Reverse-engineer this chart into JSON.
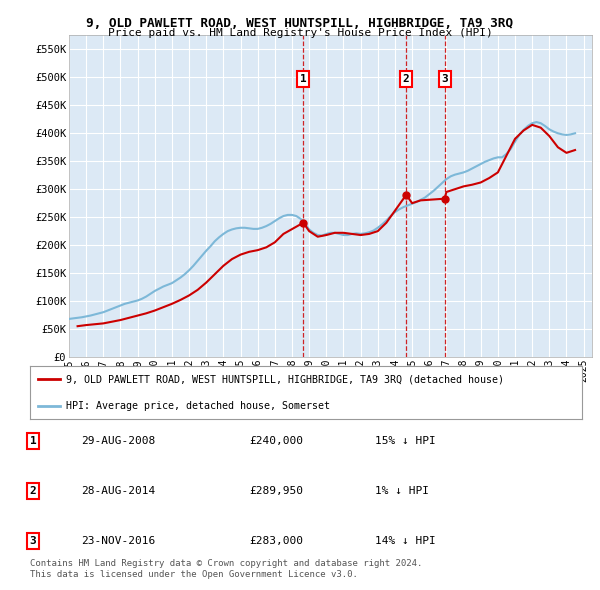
{
  "title": "9, OLD PAWLETT ROAD, WEST HUNTSPILL, HIGHBRIDGE, TA9 3RQ",
  "subtitle": "Price paid vs. HM Land Registry's House Price Index (HPI)",
  "ylabel_ticks": [
    "£0",
    "£50K",
    "£100K",
    "£150K",
    "£200K",
    "£250K",
    "£300K",
    "£350K",
    "£400K",
    "£450K",
    "£500K",
    "£550K"
  ],
  "ytick_values": [
    0,
    50000,
    100000,
    150000,
    200000,
    250000,
    300000,
    350000,
    400000,
    450000,
    500000,
    550000
  ],
  "xlim_start": 1995.0,
  "xlim_end": 2025.5,
  "ylim_min": 0,
  "ylim_max": 575000,
  "plot_bg_color": "#dce9f5",
  "grid_color": "#ffffff",
  "transactions": [
    {
      "num": 1,
      "date": "29-AUG-2008",
      "price": 240000,
      "hpi_diff": "15% ↓ HPI",
      "x": 2008.66
    },
    {
      "num": 2,
      "date": "28-AUG-2014",
      "price": 289950,
      "hpi_diff": "1% ↓ HPI",
      "x": 2014.66
    },
    {
      "num": 3,
      "date": "23-NOV-2016",
      "price": 283000,
      "hpi_diff": "14% ↓ HPI",
      "x": 2016.9
    }
  ],
  "hpi_line_color": "#7db8d8",
  "price_line_color": "#cc0000",
  "legend_label_price": "9, OLD PAWLETT ROAD, WEST HUNTSPILL, HIGHBRIDGE, TA9 3RQ (detached house)",
  "legend_label_hpi": "HPI: Average price, detached house, Somerset",
  "footer_line1": "Contains HM Land Registry data © Crown copyright and database right 2024.",
  "footer_line2": "This data is licensed under the Open Government Licence v3.0.",
  "hpi_data_x": [
    1995,
    1995.25,
    1995.5,
    1995.75,
    1996,
    1996.25,
    1996.5,
    1996.75,
    1997,
    1997.25,
    1997.5,
    1997.75,
    1998,
    1998.25,
    1998.5,
    1998.75,
    1999,
    1999.25,
    1999.5,
    1999.75,
    2000,
    2000.25,
    2000.5,
    2000.75,
    2001,
    2001.25,
    2001.5,
    2001.75,
    2002,
    2002.25,
    2002.5,
    2002.75,
    2003,
    2003.25,
    2003.5,
    2003.75,
    2004,
    2004.25,
    2004.5,
    2004.75,
    2005,
    2005.25,
    2005.5,
    2005.75,
    2006,
    2006.25,
    2006.5,
    2006.75,
    2007,
    2007.25,
    2007.5,
    2007.75,
    2008,
    2008.25,
    2008.5,
    2008.75,
    2009,
    2009.25,
    2009.5,
    2009.75,
    2010,
    2010.25,
    2010.5,
    2010.75,
    2011,
    2011.25,
    2011.5,
    2011.75,
    2012,
    2012.25,
    2012.5,
    2012.75,
    2013,
    2013.25,
    2013.5,
    2013.75,
    2014,
    2014.25,
    2014.5,
    2014.75,
    2015,
    2015.25,
    2015.5,
    2015.75,
    2016,
    2016.25,
    2016.5,
    2016.75,
    2017,
    2017.25,
    2017.5,
    2017.75,
    2018,
    2018.25,
    2018.5,
    2018.75,
    2019,
    2019.25,
    2019.5,
    2019.75,
    2020,
    2020.25,
    2020.5,
    2020.75,
    2021,
    2021.25,
    2021.5,
    2021.75,
    2022,
    2022.25,
    2022.5,
    2022.75,
    2023,
    2023.25,
    2023.5,
    2023.75,
    2024,
    2024.25,
    2024.5
  ],
  "hpi_data_y": [
    68000,
    69000,
    70000,
    71000,
    72500,
    74000,
    76000,
    78000,
    80000,
    83000,
    86000,
    89000,
    92000,
    95000,
    97000,
    99000,
    101000,
    104000,
    108000,
    113000,
    118000,
    122000,
    126000,
    129000,
    132000,
    137000,
    142000,
    148000,
    155000,
    163000,
    172000,
    181000,
    190000,
    198000,
    207000,
    214000,
    220000,
    225000,
    228000,
    230000,
    231000,
    231000,
    230000,
    229000,
    229000,
    231000,
    234000,
    238000,
    243000,
    248000,
    252000,
    254000,
    254000,
    252000,
    247000,
    238000,
    228000,
    222000,
    218000,
    217000,
    220000,
    222000,
    222000,
    220000,
    218000,
    218000,
    220000,
    221000,
    220000,
    221000,
    223000,
    226000,
    231000,
    237000,
    244000,
    252000,
    259000,
    264000,
    268000,
    271000,
    274000,
    277000,
    281000,
    285000,
    291000,
    297000,
    304000,
    311000,
    318000,
    323000,
    326000,
    328000,
    330000,
    333000,
    337000,
    341000,
    345000,
    349000,
    352000,
    355000,
    357000,
    357000,
    363000,
    372000,
    385000,
    397000,
    406000,
    413000,
    418000,
    420000,
    418000,
    413000,
    407000,
    403000,
    400000,
    398000,
    397000,
    398000,
    400000
  ],
  "price_data_x": [
    1995.5,
    1996.0,
    1997.0,
    1997.5,
    1998.0,
    1998.5,
    1999.0,
    1999.5,
    2000.0,
    2000.5,
    2001.0,
    2001.5,
    2002.0,
    2002.5,
    2003.0,
    2003.5,
    2004.0,
    2004.5,
    2005.0,
    2005.5,
    2006.0,
    2006.5,
    2007.0,
    2007.5,
    2008.66,
    2009.0,
    2009.5,
    2010.0,
    2010.5,
    2011.0,
    2011.5,
    2012.0,
    2012.5,
    2013.0,
    2013.5,
    2014.66,
    2015.0,
    2015.5,
    2016.9,
    2017.0,
    2017.5,
    2018.0,
    2018.5,
    2019.0,
    2019.5,
    2020.0,
    2020.5,
    2021.0,
    2021.5,
    2022.0,
    2022.5,
    2023.0,
    2023.5,
    2024.0,
    2024.5
  ],
  "price_data_y": [
    55000,
    57000,
    60000,
    63000,
    66000,
    70000,
    74000,
    78000,
    83000,
    89000,
    95000,
    102000,
    110000,
    120000,
    133000,
    148000,
    163000,
    175000,
    183000,
    188000,
    191000,
    196000,
    205000,
    220000,
    240000,
    225000,
    215000,
    218000,
    222000,
    222000,
    220000,
    218000,
    220000,
    225000,
    240000,
    289950,
    275000,
    280000,
    283000,
    295000,
    300000,
    305000,
    308000,
    312000,
    320000,
    330000,
    360000,
    390000,
    405000,
    415000,
    410000,
    395000,
    375000,
    365000,
    370000
  ]
}
